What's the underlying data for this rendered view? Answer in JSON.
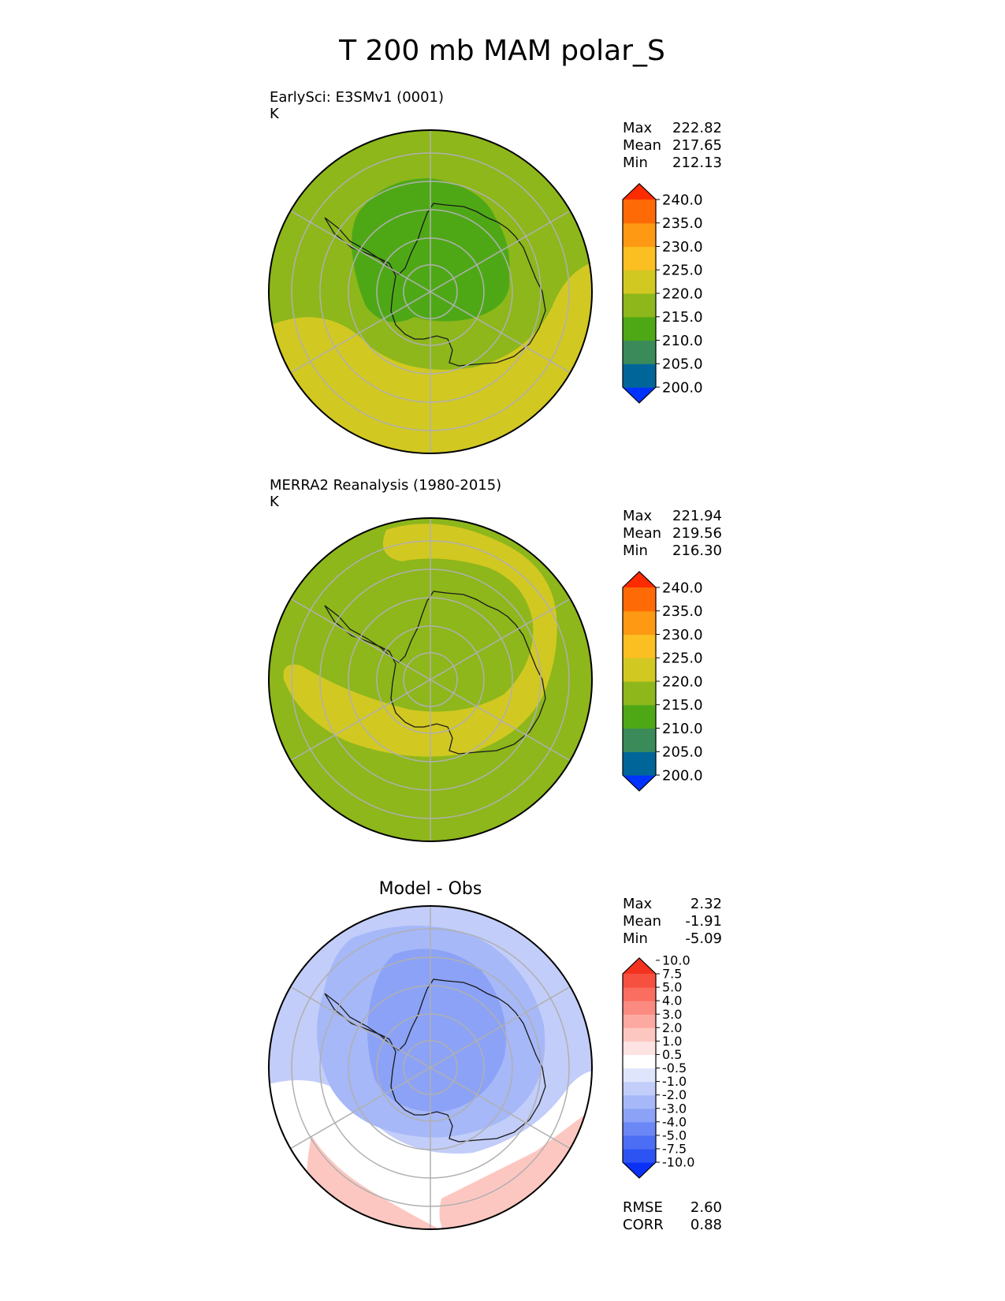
{
  "figure": {
    "title": "T 200 mb MAM polar_S"
  },
  "colors": {
    "land_outline": "#1a1a1a",
    "grid": "#b0b0b0",
    "main_levels": [
      "#0033ff",
      "#006699",
      "#3a8a5a",
      "#4ea816",
      "#8db71b",
      "#d2c822",
      "#fbbf22",
      "#fd9912",
      "#fd6a06",
      "#ff2b00"
    ],
    "diff_levels": [
      "#0a31f5",
      "#2d54f3",
      "#4c6ef4",
      "#6b87f5",
      "#8ba2f6",
      "#a6b8f8",
      "#c2cdf9",
      "#dfe5fb",
      "#ffffff",
      "#fde3e1",
      "#fdc7c1",
      "#fca9a1",
      "#fb8b80",
      "#f96e60",
      "#f65040",
      "#f43220"
    ]
  },
  "chart_data": [
    {
      "type": "heatmap",
      "projection": "polar south stereographic",
      "title": "",
      "left_title": "EarlySci: E3SMv1 (0001)",
      "units": "K",
      "stats": [
        {
          "label": "Max",
          "value": "222.82"
        },
        {
          "label": "Mean",
          "value": "217.65"
        },
        {
          "label": "Min",
          "value": "212.13"
        }
      ],
      "colorbar": {
        "levels": [
          195,
          200,
          205,
          210,
          215,
          220,
          225,
          230,
          235,
          240,
          245
        ],
        "tick_labels": [
          "200.0",
          "205.0",
          "210.0",
          "215.0",
          "220.0",
          "225.0",
          "230.0",
          "235.0",
          "240.0"
        ],
        "extend": "both"
      },
      "field_regions_K": [
        {
          "region": "outer ocean background",
          "value": 217.5
        },
        {
          "region": "Antarctic interior (cold core)",
          "value": 213.5
        },
        {
          "region": "mid-latitude warm band (bottom arc)",
          "value": 222.0
        }
      ]
    },
    {
      "type": "heatmap",
      "projection": "polar south stereographic",
      "title": "",
      "left_title": "MERRA2 Reanalysis (1980-2015)",
      "units": "K",
      "stats": [
        {
          "label": "Max",
          "value": "221.94"
        },
        {
          "label": "Mean",
          "value": "219.56"
        },
        {
          "label": "Min",
          "value": "216.30"
        }
      ],
      "colorbar": {
        "levels": [
          195,
          200,
          205,
          210,
          215,
          220,
          225,
          230,
          235,
          240,
          245
        ],
        "tick_labels": [
          "200.0",
          "205.0",
          "210.0",
          "215.0",
          "220.0",
          "225.0",
          "230.0",
          "235.0",
          "240.0"
        ],
        "extend": "both"
      },
      "field_regions_K": [
        {
          "region": "polar background",
          "value": 218.5
        },
        {
          "region": "warm band spiralling from top to bottom-left",
          "value": 221.0
        }
      ]
    },
    {
      "type": "heatmap",
      "projection": "polar south stereographic",
      "title": "Model - Obs",
      "left_title": "",
      "units": "",
      "stats": [
        {
          "label": "Max",
          "value": "2.32"
        },
        {
          "label": "Mean",
          "value": "-1.91"
        },
        {
          "label": "Min",
          "value": "-5.09"
        }
      ],
      "colorbar": {
        "levels": [
          -12.5,
          -10,
          -7.5,
          -5,
          -4,
          -3,
          -2,
          -1,
          -0.5,
          0.5,
          1,
          2,
          3,
          4,
          5,
          7.5,
          10,
          12.5
        ],
        "tick_labels": [
          "-10.0",
          "-7.5",
          "-5.0",
          "-4.0",
          "-3.0",
          "-2.0",
          "-1.0",
          "-0.5",
          "0.5",
          "1.0",
          "2.0",
          "3.0",
          "4.0",
          "5.0",
          "7.5",
          "10.0"
        ],
        "extend": "both"
      },
      "metrics": [
        {
          "label": "RMSE",
          "value": "2.60"
        },
        {
          "label": "CORR",
          "value": "0.88"
        }
      ],
      "field_regions_K": [
        {
          "region": "outer ring",
          "value": -1.5
        },
        {
          "region": "over continent",
          "value": -2.5
        },
        {
          "region": "cold core",
          "value": -4.0
        },
        {
          "region": "near-zero band (left/bottom)",
          "value": 0.0
        },
        {
          "region": "warm patch (bottom-right)",
          "value": 1.5
        }
      ]
    }
  ]
}
